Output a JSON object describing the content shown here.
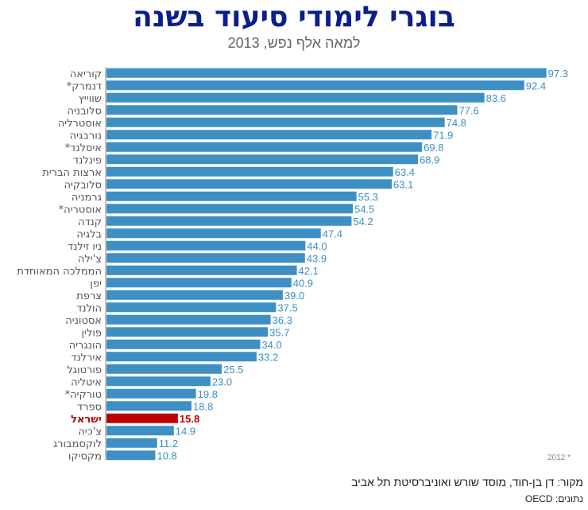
{
  "header": {
    "title": "בוגרי לימודי סיעוד בשנה",
    "subtitle": "למאה אלף נפש, 2013"
  },
  "footnote": "2012 *",
  "source": "מקור: דן בן-חוד, מוסד שורש ואוניברסיטת תל אביב",
  "data_source": "נתונים: OECD",
  "colors": {
    "bar": "#3d8fc4",
    "highlight": "#c00000",
    "label": "#555555",
    "value": "#3d8fc4",
    "title": "#0b1f8c"
  },
  "chart_data": {
    "type": "bar",
    "orientation": "horizontal",
    "title": "בוגרי לימודי סיעוד בשנה",
    "subtitle": "למאה אלף נפש, 2013",
    "highlight": "ישראל",
    "categories": [
      "קוריאה",
      "דנמרק*",
      "שווייץ",
      "סלובניה",
      "אוסטרליה",
      "נורבגיה",
      "איסלנד*",
      "פינלנד",
      "ארצות הברית",
      "סלובקיה",
      "גרמניה",
      "אוסטריה*",
      "קנדה",
      "בלגיה",
      "ניו זילנד",
      "צ'ילה",
      "הממלכה המאוחדת",
      "יפן",
      "צרפת",
      "הולנד",
      "אסטוניה",
      "פולין",
      "הונגריה",
      "אירלנד",
      "פורטוגל",
      "איטליה",
      "טורקיה*",
      "ספרד",
      "ישראל",
      "צ'כיה",
      "לוקסמבורג",
      "מקסיקו"
    ],
    "values": [
      97.3,
      92.4,
      83.6,
      77.6,
      74.8,
      71.9,
      69.8,
      68.9,
      63.4,
      63.1,
      55.3,
      54.5,
      54.2,
      47.4,
      44.0,
      43.9,
      42.1,
      40.9,
      39.0,
      37.5,
      36.3,
      35.7,
      34.0,
      33.2,
      25.5,
      23.0,
      19.8,
      18.8,
      15.8,
      14.9,
      11.2,
      10.8
    ],
    "value_labels": [
      "97.3",
      "92.4",
      "83.6",
      "77.6",
      "74.8",
      "71.9",
      "69.8",
      "68.9",
      "63.4",
      "63.1",
      "55.3",
      "54.5",
      "54.2",
      "47.4",
      "44.0",
      "43.9",
      "42.1",
      "40.9",
      "39.0",
      "37.5",
      "36.3",
      "35.7",
      "34.0",
      "33.2",
      "25.5",
      "23.0",
      "19.8",
      "18.8",
      "15.8",
      "14.9",
      "11.2",
      "10.8"
    ],
    "xlim": [
      0,
      100
    ],
    "grid": false,
    "legend": "none"
  }
}
